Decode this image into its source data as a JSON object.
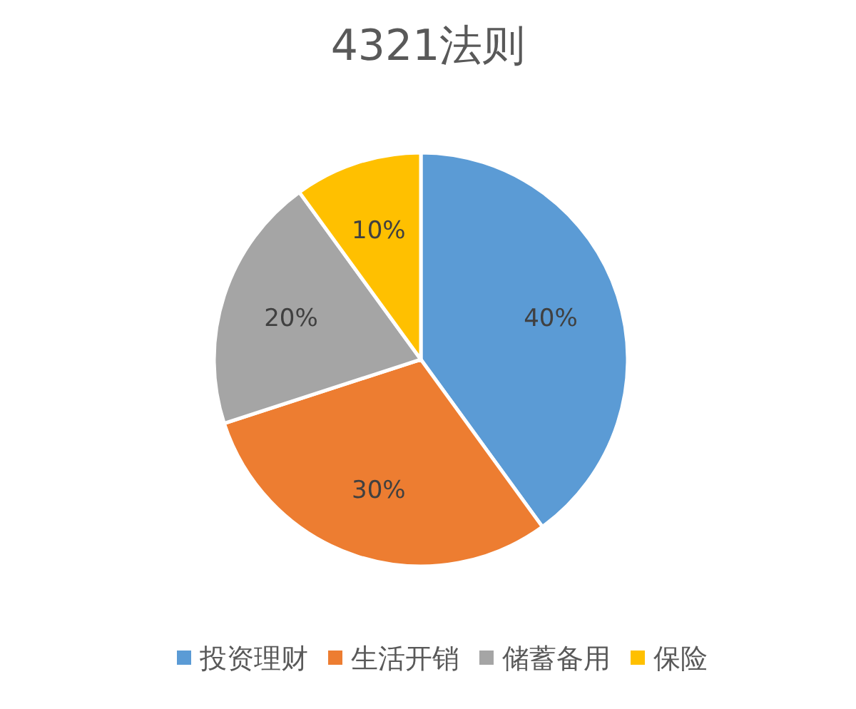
{
  "chart_data": {
    "type": "pie",
    "title": "4321法则",
    "categories": [
      "投资理财",
      "生活开销",
      "储蓄备用",
      "保险"
    ],
    "values": [
      40,
      30,
      20,
      10
    ],
    "colors": [
      "#5b9bd5",
      "#ed7d31",
      "#a5a5a5",
      "#ffc000"
    ],
    "value_labels": [
      "40%",
      "30%",
      "20%",
      "10%"
    ],
    "legend": "bottom"
  }
}
